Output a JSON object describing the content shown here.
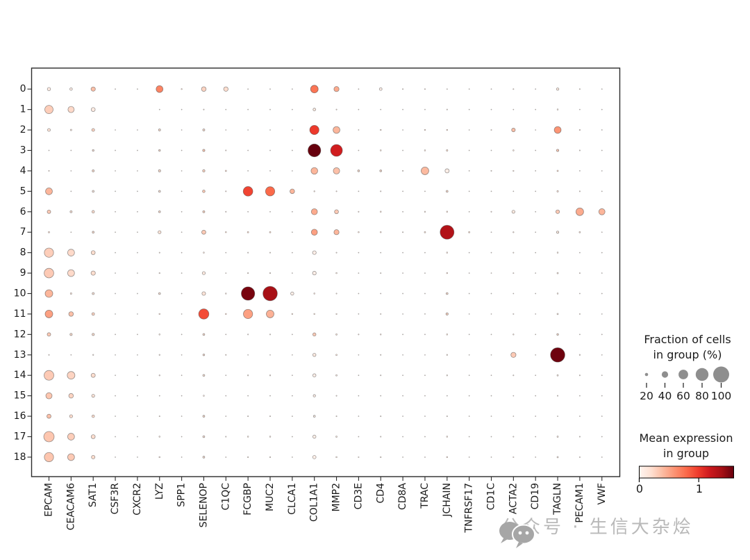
{
  "chart_data": {
    "type": "scatter",
    "subtype": "dotplot",
    "title": "",
    "x_categories": [
      "EPCAM",
      "CEACAM6",
      "SAT1",
      "CSF3R",
      "CXCR2",
      "LYZ",
      "SPP1",
      "SELENOP",
      "C1QC",
      "FCGBP",
      "MUC2",
      "CLCA1",
      "COL1A1",
      "MMP2",
      "CD3E",
      "CD4",
      "CD8A",
      "TRAC",
      "JCHAIN",
      "TNFRSF17",
      "CD1C",
      "ACTA2",
      "CD19",
      "TAGLN",
      "PECAM1",
      "VWF"
    ],
    "y_categories": [
      "0",
      "1",
      "2",
      "3",
      "4",
      "5",
      "6",
      "7",
      "8",
      "9",
      "10",
      "11",
      "12",
      "13",
      "14",
      "15",
      "16",
      "17",
      "18"
    ],
    "value_semantics": {
      "dot_size": "fraction of cells in group (%)",
      "dot_color": "mean expression in group"
    },
    "expression_vmin": 0,
    "expression_vmax": 1.5,
    "colormap_reds": [
      "#fff5f0",
      "#fee0d2",
      "#fcbba1",
      "#fc9272",
      "#fb6a4a",
      "#ef3b2c",
      "#cb181d",
      "#a50f15",
      "#67000d"
    ],
    "rows": [
      {
        "label": "0",
        "fraction": [
          20,
          16,
          27,
          5,
          5,
          43,
          7,
          29,
          28,
          5,
          4,
          4,
          48,
          32,
          5,
          17,
          6,
          6,
          5,
          3,
          5,
          6,
          2,
          15,
          6,
          4
        ],
        "expression": [
          0.08,
          0.05,
          0.35,
          0.1,
          0.1,
          0.63,
          0.2,
          0.25,
          0.2,
          0.1,
          0.1,
          0.1,
          0.7,
          0.45,
          0.15,
          0.05,
          0.1,
          0.15,
          0.15,
          0.1,
          0.15,
          0.15,
          0.1,
          0.1,
          0.1,
          0.1
        ]
      },
      {
        "label": "1",
        "fraction": [
          52,
          39,
          25,
          0,
          0,
          5,
          2,
          6,
          2,
          3,
          3,
          2,
          17,
          6,
          3,
          5,
          2,
          3,
          6,
          2,
          2,
          5,
          2,
          8,
          3,
          2
        ],
        "expression": [
          0.28,
          0.22,
          0.08,
          0,
          0,
          0.1,
          0.1,
          0.15,
          0.1,
          0.1,
          0.1,
          0.1,
          0.1,
          0.15,
          0.1,
          0.1,
          0.1,
          0.1,
          0.15,
          0.1,
          0.1,
          0.1,
          0.1,
          0.1,
          0.1,
          0.1
        ]
      },
      {
        "label": "2",
        "fraction": [
          18,
          10,
          18,
          4,
          3,
          13,
          3,
          13,
          4,
          4,
          4,
          3,
          58,
          43,
          5,
          8,
          4,
          8,
          8,
          3,
          6,
          23,
          3,
          43,
          7,
          5
        ],
        "expression": [
          0.15,
          0.1,
          0.25,
          0.1,
          0.1,
          0.2,
          0.1,
          0.2,
          0.1,
          0.1,
          0.1,
          0.1,
          0.95,
          0.4,
          0.15,
          0.15,
          0.1,
          0.15,
          0.2,
          0.1,
          0.15,
          0.35,
          0.1,
          0.55,
          0.15,
          0.1
        ]
      },
      {
        "label": "3",
        "fraction": [
          4,
          3,
          11,
          3,
          2,
          11,
          3,
          14,
          6,
          4,
          4,
          2,
          80,
          74,
          5,
          8,
          4,
          8,
          10,
          4,
          4,
          8,
          3,
          14,
          6,
          4
        ],
        "expression": [
          0.1,
          0.1,
          0.15,
          0.1,
          0.1,
          0.2,
          0.1,
          0.3,
          0.15,
          0.1,
          0.1,
          0.1,
          1.5,
          1.1,
          0.1,
          0.15,
          0.1,
          0.15,
          0.2,
          0.1,
          0.1,
          0.15,
          0.1,
          0.3,
          0.1,
          0.1
        ]
      },
      {
        "label": "4",
        "fraction": [
          6,
          4,
          13,
          4,
          2,
          14,
          3,
          15,
          9,
          5,
          5,
          3,
          42,
          40,
          12,
          12,
          6,
          48,
          26,
          5,
          6,
          7,
          5,
          9,
          5,
          4
        ],
        "expression": [
          0.15,
          0.1,
          0.2,
          0.1,
          0.1,
          0.2,
          0.1,
          0.25,
          0.2,
          0.1,
          0.1,
          0.1,
          0.4,
          0.35,
          0.2,
          0.2,
          0.15,
          0.38,
          0.05,
          0.1,
          0.1,
          0.15,
          0.1,
          0.2,
          0.1,
          0.1
        ]
      },
      {
        "label": "5",
        "fraction": [
          43,
          4,
          12,
          2,
          2,
          12,
          3,
          16,
          6,
          60,
          58,
          29,
          7,
          6,
          5,
          6,
          3,
          5,
          12,
          3,
          3,
          5,
          3,
          10,
          6,
          3
        ],
        "expression": [
          0.4,
          0.1,
          0.1,
          0,
          0,
          0.15,
          0.1,
          0.3,
          0.15,
          0.9,
          0.75,
          0.4,
          0.15,
          0.15,
          0.1,
          0.1,
          0.1,
          0.1,
          0.2,
          0.1,
          0.1,
          0.1,
          0.1,
          0.15,
          0.1,
          0.1
        ]
      },
      {
        "label": "6",
        "fraction": [
          22,
          13,
          16,
          4,
          3,
          12,
          4,
          13,
          6,
          5,
          5,
          3,
          38,
          25,
          6,
          8,
          5,
          7,
          8,
          4,
          6,
          19,
          4,
          23,
          48,
          39
        ],
        "expression": [
          0.3,
          0.15,
          0.2,
          0.1,
          0.1,
          0.2,
          0.1,
          0.25,
          0.15,
          0.1,
          0.1,
          0.1,
          0.45,
          0.3,
          0.15,
          0.15,
          0.1,
          0.15,
          0.2,
          0.1,
          0.15,
          0.1,
          0.1,
          0.3,
          0.45,
          0.4
        ]
      },
      {
        "label": "7",
        "fraction": [
          9,
          5,
          12,
          4,
          3,
          19,
          4,
          26,
          8,
          9,
          9,
          4,
          38,
          32,
          8,
          8,
          6,
          9,
          87,
          9,
          5,
          7,
          4,
          14,
          9,
          4
        ],
        "expression": [
          0.2,
          0.1,
          0.2,
          0.1,
          0.1,
          0.15,
          0.1,
          0.3,
          0.2,
          0.2,
          0.2,
          0.1,
          0.5,
          0.4,
          0.15,
          0.15,
          0.1,
          0.15,
          1.25,
          0.2,
          0.1,
          0.15,
          0.1,
          0.1,
          0.15,
          0.1
        ]
      },
      {
        "label": "8",
        "fraction": [
          58,
          43,
          25,
          2,
          2,
          6,
          3,
          8,
          4,
          6,
          6,
          3,
          23,
          6,
          5,
          5,
          3,
          4,
          8,
          3,
          3,
          6,
          3,
          8,
          5,
          4
        ],
        "expression": [
          0.28,
          0.22,
          0.2,
          0,
          0,
          0.1,
          0.1,
          0.15,
          0.1,
          0.1,
          0.1,
          0.1,
          0.05,
          0.1,
          0.1,
          0.1,
          0.1,
          0.1,
          0.15,
          0.1,
          0.1,
          0.1,
          0.1,
          0.1,
          0.1,
          0.1
        ]
      },
      {
        "label": "9",
        "fraction": [
          60,
          43,
          27,
          3,
          2,
          7,
          5,
          19,
          5,
          7,
          7,
          4,
          23,
          8,
          5,
          6,
          3,
          5,
          8,
          4,
          3,
          6,
          3,
          9,
          6,
          4
        ],
        "expression": [
          0.3,
          0.22,
          0.2,
          0,
          0,
          0.1,
          0.1,
          0.1,
          0.1,
          0.1,
          0.1,
          0.1,
          0.05,
          0.1,
          0.1,
          0.1,
          0.1,
          0.1,
          0.15,
          0.1,
          0.1,
          0.1,
          0.1,
          0.1,
          0.1,
          0.1
        ]
      },
      {
        "label": "10",
        "fraction": [
          48,
          10,
          13,
          2,
          2,
          12,
          3,
          23,
          7,
          84,
          90,
          20,
          8,
          6,
          4,
          5,
          3,
          4,
          12,
          4,
          3,
          5,
          3,
          8,
          5,
          3
        ],
        "expression": [
          0.4,
          0.15,
          0.15,
          0,
          0,
          0.15,
          0.1,
          0.15,
          0.15,
          1.45,
          1.3,
          0.05,
          0.15,
          0.1,
          0.1,
          0.1,
          0.1,
          0.1,
          0.2,
          0.1,
          0.1,
          0.1,
          0.1,
          0.1,
          0.1,
          0.1
        ]
      },
      {
        "label": "11",
        "fraction": [
          48,
          29,
          17,
          3,
          2,
          8,
          4,
          64,
          8,
          58,
          48,
          8,
          8,
          7,
          5,
          6,
          4,
          5,
          14,
          4,
          4,
          6,
          3,
          9,
          6,
          4
        ],
        "expression": [
          0.5,
          0.35,
          0.25,
          0,
          0,
          0.15,
          0.1,
          0.87,
          0.2,
          0.5,
          0.42,
          0.15,
          0.15,
          0.15,
          0.1,
          0.1,
          0.1,
          0.1,
          0.25,
          0.1,
          0.1,
          0.1,
          0.1,
          0.1,
          0.1,
          0.1
        ]
      },
      {
        "label": "12",
        "fraction": [
          22,
          14,
          14,
          5,
          3,
          8,
          4,
          12,
          5,
          6,
          6,
          4,
          20,
          9,
          6,
          7,
          5,
          5,
          8,
          4,
          4,
          7,
          3,
          11,
          5,
          4
        ],
        "expression": [
          0.3,
          0.2,
          0.2,
          0.1,
          0.1,
          0.1,
          0.1,
          0.2,
          0.1,
          0.1,
          0.1,
          0.1,
          0.3,
          0.15,
          0.15,
          0.15,
          0.1,
          0.1,
          0.15,
          0.1,
          0.1,
          0.15,
          0.1,
          0.2,
          0.1,
          0.1
        ]
      },
      {
        "label": "13",
        "fraction": [
          6,
          5,
          7,
          2,
          2,
          7,
          3,
          11,
          6,
          4,
          4,
          3,
          20,
          9,
          4,
          6,
          3,
          4,
          7,
          3,
          3,
          32,
          3,
          90,
          7,
          4
        ],
        "expression": [
          0.1,
          0.1,
          0.1,
          0,
          0,
          0.1,
          0.1,
          0.2,
          0.15,
          0.1,
          0.1,
          0.1,
          0.1,
          0.15,
          0.1,
          0.1,
          0.1,
          0.1,
          0.15,
          0.1,
          0.1,
          0.3,
          0.1,
          1.48,
          0.1,
          0.1
        ]
      },
      {
        "label": "14",
        "fraction": [
          61,
          48,
          26,
          4,
          3,
          7,
          4,
          12,
          4,
          7,
          7,
          4,
          20,
          9,
          5,
          6,
          4,
          5,
          7,
          3,
          3,
          6,
          3,
          9,
          6,
          3
        ],
        "expression": [
          0.3,
          0.25,
          0.2,
          0,
          0,
          0.1,
          0.1,
          0.15,
          0.1,
          0.1,
          0.1,
          0.1,
          0.05,
          0.1,
          0.1,
          0.1,
          0.1,
          0.1,
          0.1,
          0.1,
          0.1,
          0.1,
          0.1,
          0.1,
          0.1,
          0.1
        ]
      },
      {
        "label": "15",
        "fraction": [
          39,
          29,
          19,
          2,
          2,
          5,
          3,
          8,
          3,
          5,
          5,
          3,
          15,
          6,
          4,
          5,
          3,
          4,
          5,
          3,
          2,
          4,
          2,
          6,
          4,
          3
        ],
        "expression": [
          0.32,
          0.25,
          0.15,
          0,
          0,
          0.1,
          0.1,
          0.1,
          0.1,
          0.1,
          0.1,
          0.1,
          0.05,
          0.1,
          0.1,
          0.1,
          0.1,
          0.1,
          0.1,
          0.1,
          0.1,
          0.1,
          0.1,
          0.1,
          0.1,
          0.1
        ]
      },
      {
        "label": "16",
        "fraction": [
          26,
          19,
          16,
          3,
          2,
          6,
          3,
          12,
          4,
          6,
          6,
          5,
          12,
          6,
          4,
          6,
          3,
          4,
          6,
          3,
          3,
          4,
          2,
          5,
          4,
          3
        ],
        "expression": [
          0.35,
          0.2,
          0.2,
          0,
          0,
          0.1,
          0.1,
          0.2,
          0.1,
          0.1,
          0.1,
          0.1,
          0.05,
          0.1,
          0.1,
          0.1,
          0.1,
          0.1,
          0.1,
          0.1,
          0.1,
          0.1,
          0.1,
          0.1,
          0.1,
          0.1
        ]
      },
      {
        "label": "17",
        "fraction": [
          65,
          43,
          25,
          3,
          2,
          8,
          4,
          12,
          6,
          8,
          8,
          5,
          20,
          9,
          5,
          6,
          4,
          5,
          8,
          4,
          3,
          6,
          3,
          9,
          6,
          4
        ],
        "expression": [
          0.32,
          0.28,
          0.2,
          0,
          0,
          0.1,
          0.1,
          0.15,
          0.1,
          0.1,
          0.1,
          0.1,
          0.05,
          0.1,
          0.1,
          0.1,
          0.1,
          0.1,
          0.15,
          0.1,
          0.1,
          0.1,
          0.1,
          0.1,
          0.1,
          0.1
        ]
      },
      {
        "label": "18",
        "fraction": [
          58,
          43,
          22,
          3,
          2,
          8,
          4,
          12,
          5,
          7,
          7,
          4,
          21,
          8,
          6,
          7,
          4,
          5,
          8,
          4,
          3,
          6,
          4,
          9,
          6,
          4
        ],
        "expression": [
          0.32,
          0.3,
          0.2,
          0,
          0,
          0.1,
          0.1,
          0.15,
          0.1,
          0.1,
          0.1,
          0.1,
          0.05,
          0.1,
          0.1,
          0.1,
          0.1,
          0.1,
          0.15,
          0.1,
          0.1,
          0.1,
          0.1,
          0.1,
          0.1,
          0.1
        ]
      }
    ],
    "legend_position": "right",
    "grid": false
  },
  "legend_size": {
    "title_line1": "Fraction of cells",
    "title_line2": "in group (%)",
    "sizes": [
      20,
      40,
      60,
      80,
      100
    ],
    "dot_color": "#8e8e8e"
  },
  "legend_color": {
    "title_line1": "Mean expression",
    "title_line2": "in group",
    "tick_labels": [
      "0",
      "1"
    ],
    "tick_positions": [
      0.0,
      0.63
    ]
  },
  "watermark": {
    "icon": "wechat-icon",
    "text": "公众号 · 生信大杂烩",
    "color": "#b9b9b9"
  },
  "frame_color": "#2b2b2b"
}
